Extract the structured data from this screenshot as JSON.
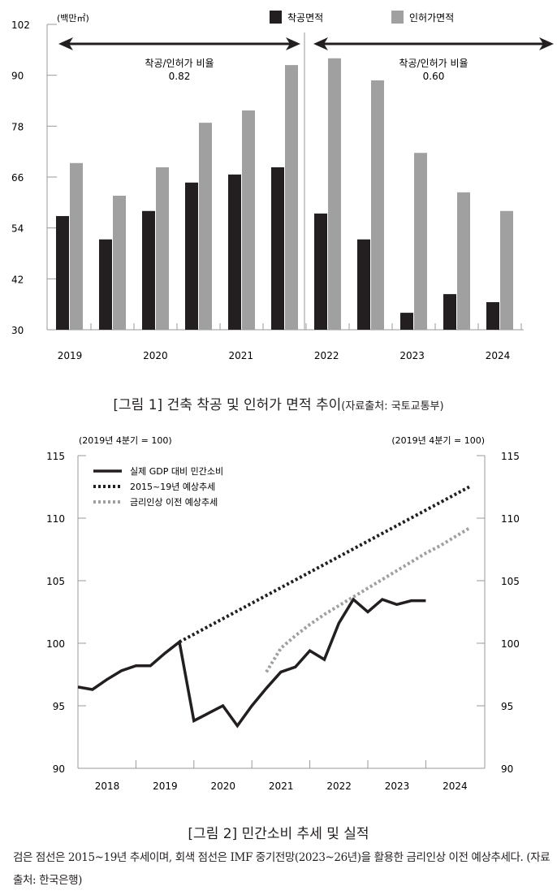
{
  "chart_data": [
    {
      "type": "bar",
      "unit_label": "(백만㎡)",
      "legend": [
        "착공면적",
        "인허가면적"
      ],
      "colors": {
        "start": "#231f20",
        "permit": "#a0a0a0"
      },
      "ylim": [
        30,
        102
      ],
      "yticks": [
        30,
        42,
        54,
        66,
        78,
        90,
        102
      ],
      "xlabels": [
        "2019",
        "2020",
        "2021",
        "2022",
        "2023",
        "2024"
      ],
      "periods": [
        "2019H1",
        "2019H2",
        "2020H1",
        "2020H2",
        "2021H1",
        "2021H2",
        "2022H1",
        "2022H2",
        "2023H1",
        "2023H2",
        "2024H1"
      ],
      "series": [
        {
          "name": "착공면적",
          "values": [
            56.8,
            51.3,
            58.0,
            64.7,
            66.6,
            68.3,
            57.4,
            51.3,
            34.0,
            38.4,
            36.5
          ]
        },
        {
          "name": "인허가면적",
          "values": [
            69.3,
            61.6,
            68.3,
            78.8,
            81.7,
            92.4,
            94.0,
            88.8,
            71.7,
            62.4,
            58.0
          ]
        }
      ],
      "annotations": [
        {
          "label": "착공/인허가 비율",
          "value": "0.82"
        },
        {
          "label": "착공/인허가 비율",
          "value": "0.60"
        }
      ],
      "caption": "[그림 1] 건축 착공 및 인허가 면적 추이",
      "caption_source": "(자료출처: 국토교통부)"
    },
    {
      "type": "line",
      "unit_left": "(2019년 4분기 = 100)",
      "unit_right": "(2019년 4분기 = 100)",
      "ylim": [
        90,
        115
      ],
      "yticks": [
        90,
        95,
        100,
        105,
        110,
        115
      ],
      "xlabels": [
        "2018",
        "2019",
        "2020",
        "2021",
        "2022",
        "2023",
        "2024"
      ],
      "x_unit": "quarter index from 2018Q1",
      "series": [
        {
          "name": "실제 GDP 대비 민간소비",
          "style": "solid",
          "color": "#231f20",
          "start": 0,
          "values": [
            96.5,
            96.3,
            97.1,
            97.8,
            98.2,
            98.2,
            99.2,
            100.1,
            93.8,
            94.4,
            95.0,
            93.4,
            95.0,
            96.4,
            97.7,
            98.1,
            99.4,
            98.7,
            101.6,
            103.5,
            102.5,
            103.5,
            103.1,
            103.4,
            103.4
          ]
        },
        {
          "name": "2015~19년 예상추세",
          "style": "dotted",
          "color": "#231f20",
          "start": 7,
          "values": [
            100.1,
            112.5
          ],
          "end": 27
        },
        {
          "name": "금리인상 이전 예상추세",
          "style": "dotted",
          "color": "#a0a0a0",
          "start": 14,
          "values": [
            97.7,
            99.6,
            100.6,
            101.5,
            102.3,
            103.0,
            103.7,
            104.4,
            105.1,
            105.8,
            106.5,
            107.2,
            107.8,
            108.5,
            109.2
          ]
        }
      ],
      "caption": "[그림 2] 민간소비 추세 및 실적"
    }
  ],
  "note": "검은 점선은 2015~19년 추세이며, 회색 점선은 IMF 중기전망(2023~26년)을 활용한 금리인상 이전 예상추세다. (자료출처: 한국은행)"
}
